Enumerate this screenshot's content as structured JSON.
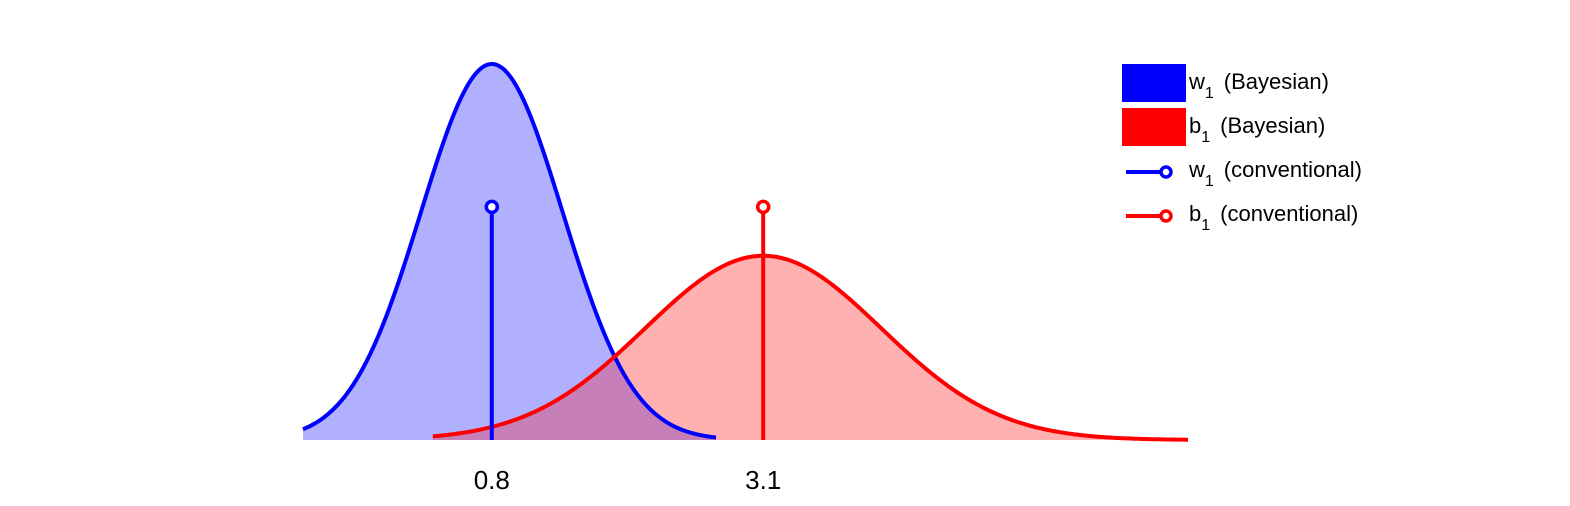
{
  "chart_data": {
    "type": "area",
    "title": "",
    "xlabel": "",
    "ylabel": "",
    "xlim": [
      -0.8,
      6.7
    ],
    "ylim": [
      0,
      1
    ],
    "grid": false,
    "xticks": [
      0.8,
      3.1
    ],
    "xtick_labels": [
      "0.8",
      "3.1"
    ],
    "legend_position": "top-right",
    "series": [
      {
        "name": "w",
        "name_sub": "1",
        "name_suffix": "(Bayesian)",
        "kind": "density",
        "mean": 0.8,
        "sd": 0.6,
        "peak": 1.0,
        "x_range": [
          -0.8,
          2.7
        ],
        "color": "#0000ff",
        "fill": "#b0b0ff"
      },
      {
        "name": "b",
        "name_sub": "1",
        "name_suffix": "(Bayesian)",
        "kind": "density",
        "mean": 3.1,
        "sd": 1.0,
        "peak": 0.49,
        "x_range": [
          0.3,
          6.7
        ],
        "color": "#ff0000",
        "fill": "#ffb0b0"
      },
      {
        "name": "w",
        "name_sub": "1",
        "name_suffix": "(conventional)",
        "kind": "stem",
        "x": 0.8,
        "y": 0.62,
        "color": "#0000ff"
      },
      {
        "name": "b",
        "name_sub": "1",
        "name_suffix": "(conventional)",
        "kind": "stem",
        "x": 3.1,
        "y": 0.62,
        "color": "#ff0000"
      }
    ],
    "overlap_fill": "#c77fb8"
  }
}
